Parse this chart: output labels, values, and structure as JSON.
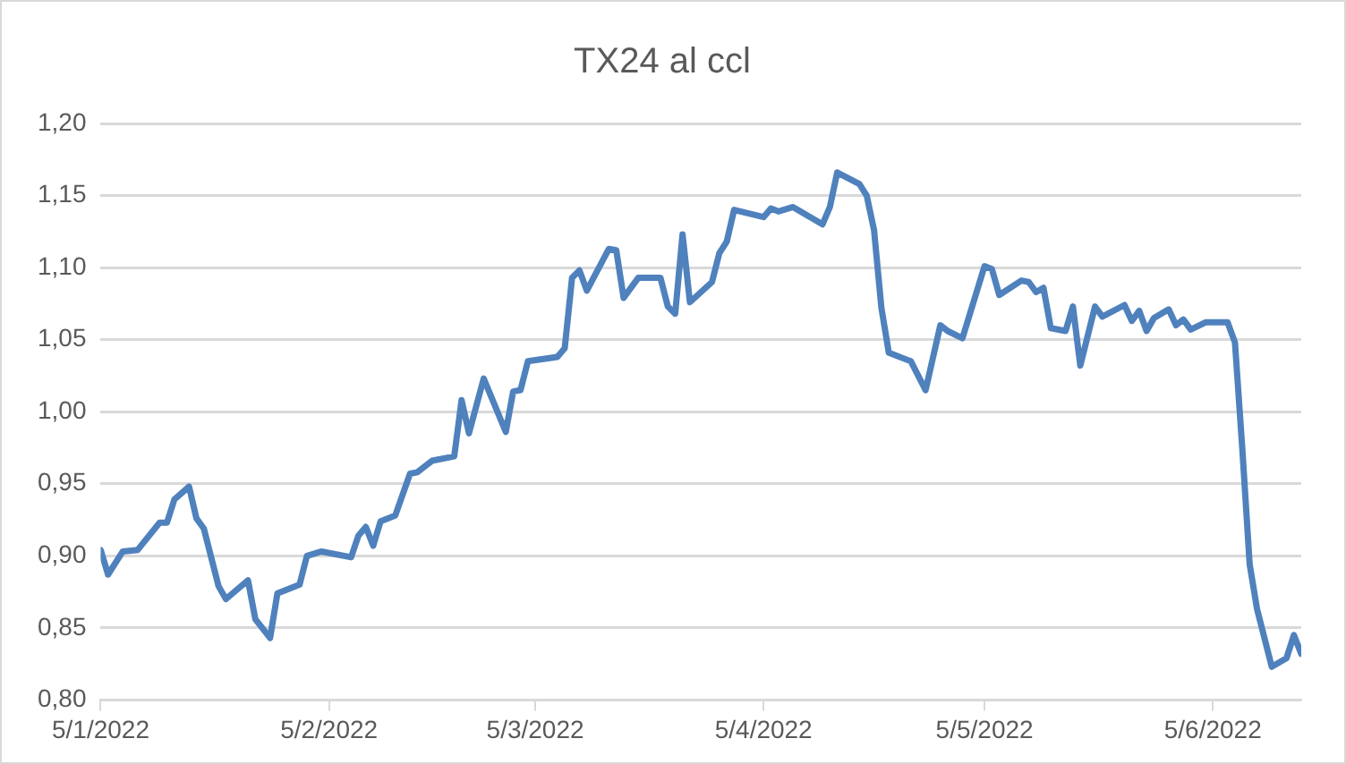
{
  "chart_data": {
    "type": "line",
    "title": "TX24 al ccl",
    "x": [
      "2022-01-05",
      "2022-01-06",
      "2022-01-08",
      "2022-01-10",
      "2022-01-13",
      "2022-01-14",
      "2022-01-15",
      "2022-01-17",
      "2022-01-18",
      "2022-01-19",
      "2022-01-21",
      "2022-01-22",
      "2022-01-25",
      "2022-01-26",
      "2022-01-28",
      "2022-01-29",
      "2022-02-01",
      "2022-02-02",
      "2022-02-04",
      "2022-02-08",
      "2022-02-09",
      "2022-02-10",
      "2022-02-11",
      "2022-02-12",
      "2022-02-14",
      "2022-02-16",
      "2022-02-17",
      "2022-02-19",
      "2022-02-22",
      "2022-02-23",
      "2022-02-24",
      "2022-02-26",
      "2022-03-01",
      "2022-03-02",
      "2022-03-03",
      "2022-03-04",
      "2022-03-08",
      "2022-03-09",
      "2022-03-10",
      "2022-03-11",
      "2022-03-12",
      "2022-03-15",
      "2022-03-16",
      "2022-03-17",
      "2022-03-19",
      "2022-03-22",
      "2022-03-23",
      "2022-03-24",
      "2022-03-25",
      "2022-03-26",
      "2022-03-29",
      "2022-03-30",
      "2022-03-31",
      "2022-04-01",
      "2022-04-05",
      "2022-04-06",
      "2022-04-07",
      "2022-04-09",
      "2022-04-13",
      "2022-04-14",
      "2022-04-15",
      "2022-04-18",
      "2022-04-19",
      "2022-04-20",
      "2022-04-21",
      "2022-04-22",
      "2022-04-25",
      "2022-04-27",
      "2022-04-29",
      "2022-04-30",
      "2022-05-02",
      "2022-05-05",
      "2022-05-06",
      "2022-05-07",
      "2022-05-10",
      "2022-05-11",
      "2022-05-12",
      "2022-05-13",
      "2022-05-14",
      "2022-05-16",
      "2022-05-17",
      "2022-05-18",
      "2022-05-20",
      "2022-05-21",
      "2022-05-24",
      "2022-05-25",
      "2022-05-26",
      "2022-05-27",
      "2022-05-28",
      "2022-05-30",
      "2022-05-31",
      "2022-06-01",
      "2022-06-02",
      "2022-06-04",
      "2022-06-07",
      "2022-06-08",
      "2022-06-09",
      "2022-06-10",
      "2022-06-11",
      "2022-06-13",
      "2022-06-15",
      "2022-06-16",
      "2022-06-17"
    ],
    "series": [
      {
        "color": "#4f81bd",
        "values": [
          0.904,
          0.887,
          0.903,
          0.904,
          0.923,
          0.923,
          0.939,
          0.948,
          0.926,
          0.919,
          0.879,
          0.87,
          0.883,
          0.856,
          0.843,
          0.874,
          0.88,
          0.9,
          0.903,
          0.899,
          0.914,
          0.92,
          0.907,
          0.924,
          0.928,
          0.957,
          0.958,
          0.966,
          0.969,
          1.008,
          0.985,
          1.023,
          0.986,
          1.014,
          1.015,
          1.035,
          1.038,
          1.044,
          1.093,
          1.098,
          1.084,
          1.113,
          1.112,
          1.079,
          1.093,
          1.093,
          1.073,
          1.068,
          1.123,
          1.076,
          1.09,
          1.11,
          1.118,
          1.14,
          1.135,
          1.141,
          1.139,
          1.142,
          1.13,
          1.142,
          1.166,
          1.158,
          1.15,
          1.126,
          1.072,
          1.041,
          1.035,
          1.015,
          1.06,
          1.056,
          1.051,
          1.101,
          1.099,
          1.081,
          1.091,
          1.09,
          1.083,
          1.086,
          1.058,
          1.056,
          1.073,
          1.032,
          1.073,
          1.066,
          1.074,
          1.063,
          1.07,
          1.056,
          1.065,
          1.071,
          1.06,
          1.064,
          1.057,
          1.062,
          1.062,
          1.048,
          0.974,
          0.894,
          0.863,
          0.823,
          0.829,
          0.845,
          0.832
        ]
      }
    ],
    "xlim": [
      "2022-01-05",
      "2022-06-17"
    ],
    "xticks": [
      {
        "value": "2022-01-05",
        "label": "5/1/2022"
      },
      {
        "value": "2022-02-05",
        "label": "5/2/2022"
      },
      {
        "value": "2022-03-05",
        "label": "5/3/2022"
      },
      {
        "value": "2022-04-05",
        "label": "5/4/2022"
      },
      {
        "value": "2022-05-05",
        "label": "5/5/2022"
      },
      {
        "value": "2022-06-05",
        "label": "5/6/2022"
      }
    ],
    "ylim": [
      0.8,
      1.2
    ],
    "yticks": [
      {
        "value": 0.8,
        "label": "0,80"
      },
      {
        "value": 0.85,
        "label": "0,85"
      },
      {
        "value": 0.9,
        "label": "0,90"
      },
      {
        "value": 0.95,
        "label": "0,95"
      },
      {
        "value": 1.0,
        "label": "1,00"
      },
      {
        "value": 1.05,
        "label": "1,05"
      },
      {
        "value": 1.1,
        "label": "1,10"
      },
      {
        "value": 1.15,
        "label": "1,15"
      },
      {
        "value": 1.2,
        "label": "1,20"
      }
    ],
    "grid": "y",
    "legend": false,
    "marker": "none",
    "line_style": "solid"
  }
}
